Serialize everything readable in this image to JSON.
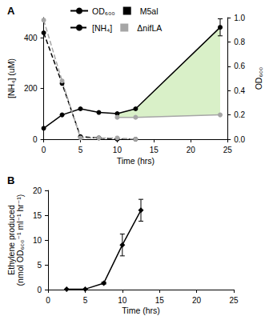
{
  "chart_data": [
    {
      "type": "line",
      "title": "A",
      "x": [
        0,
        2.5,
        5,
        7.5,
        10,
        12.5,
        24
      ],
      "xlim": [
        0,
        25
      ],
      "xticks": [
        0,
        5,
        10,
        15,
        20,
        25
      ],
      "xlabel": "Time (hrs)",
      "ylabel": "[NH₄] (uM)",
      "ylim": [
        0,
        480
      ],
      "yticks": [
        0,
        200,
        400
      ],
      "y2label": "OD₆₀₀",
      "y2lim": [
        0,
        1
      ],
      "y2ticks": [
        {
          "value": 0,
          "label": "0.0"
        },
        0.2,
        0.4,
        0.6,
        0.8,
        {
          "value": 1,
          "label": "1.0"
        }
      ],
      "grid": false,
      "legend": "top",
      "legend_items": [
        {
          "name": "OD₆₀₀",
          "marker": "circle",
          "line_style": "solid",
          "color": "#000000"
        },
        {
          "name": "M5al",
          "marker": "square",
          "color": "#000000"
        },
        {
          "name": "[NH₄]",
          "line_style": "dashed",
          "color": "#000000"
        },
        {
          "name": "ΔnifLA",
          "marker": "square",
          "color": "#a6a6a6"
        }
      ],
      "series": [
        {
          "axis": "y2",
          "color": "#000000",
          "marker": "circle",
          "line_style": "solid",
          "values": [
            0.09,
            0.2,
            0.25,
            0.22,
            0.21,
            0.25,
            0.92
          ],
          "errors": [
            0,
            0,
            0,
            0,
            0,
            0,
            0.07
          ]
        },
        {
          "axis": "y2",
          "color": "#a6a6a6",
          "marker": "circle",
          "line_style": "solid",
          "values": [
            null,
            null,
            null,
            null,
            0.18,
            0.18,
            0.2
          ]
        },
        {
          "color": "#000000",
          "marker": "circle",
          "line_style": "dashed",
          "values": [
            420,
            220,
            10,
            5,
            0,
            0,
            null
          ]
        },
        {
          "color": "#a6a6a6",
          "marker": "circle",
          "line_style": "dashed",
          "values": [
            470,
            230,
            5,
            5,
            5,
            0,
            null
          ]
        }
      ]
    },
    {
      "type": "line",
      "title": "B",
      "x": [
        2.5,
        5,
        7.5,
        10,
        12.5
      ],
      "xlim": [
        0,
        25
      ],
      "xticks": [
        0,
        5,
        10,
        15,
        20,
        25
      ],
      "xlabel": "Time (hrs)",
      "ylabel": "Ethylene produced\n(nmol OD₆₀₀⁻¹ ml⁻¹ hr⁻¹)",
      "ylim": [
        0,
        20
      ],
      "yticks": [
        0,
        5,
        10,
        15,
        20
      ],
      "grid": false,
      "series": [
        {
          "color": "#000000",
          "marker": "diamond",
          "line_style": "solid",
          "values": [
            0.1,
            0.1,
            1.3,
            9,
            16
          ],
          "errors": [
            0,
            0,
            0.2,
            2.2,
            2.2
          ]
        }
      ]
    }
  ]
}
